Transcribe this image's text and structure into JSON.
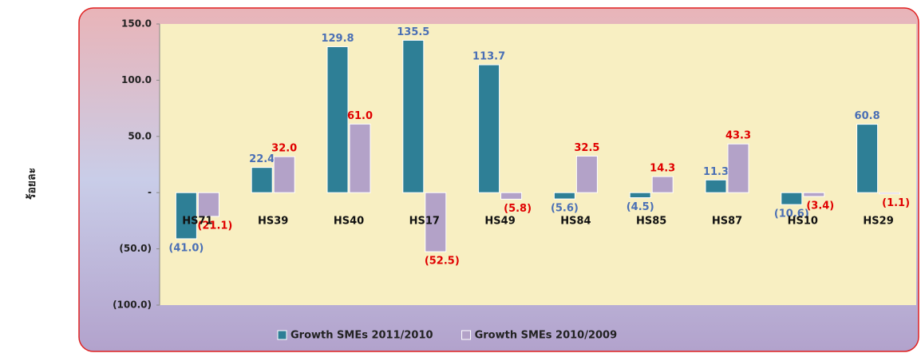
{
  "chart_data": {
    "type": "bar",
    "y_label": "ร้อยละ",
    "categories": [
      "HS71",
      "HS39",
      "HS40",
      "HS17",
      "HS49",
      "HS84",
      "HS85",
      "HS87",
      "HS10",
      "HS29"
    ],
    "series": [
      {
        "name": "Growth SMEs 2011/2010",
        "color": "#2e7f96",
        "label_color": "#4a6fb5",
        "values": [
          -41.0,
          22.4,
          129.8,
          135.5,
          113.7,
          -5.6,
          -4.5,
          11.3,
          -10.6,
          60.8
        ],
        "value_labels": [
          "(41.0)",
          "22.4",
          "129.8",
          "135.5",
          "113.7",
          "(5.6)",
          "(4.5)",
          "11.3",
          "(10.6)",
          "60.8"
        ]
      },
      {
        "name": "Growth SMEs 2010/2009",
        "color": "#b3a2c8",
        "label_color": "#e00000",
        "values": [
          -21.1,
          32.0,
          61.0,
          -52.5,
          -5.8,
          32.5,
          14.3,
          43.3,
          -3.4,
          -1.1
        ],
        "value_labels": [
          "(21.1)",
          "32.0",
          "61.0",
          "(52.5)",
          "(5.8)",
          "32.5",
          "14.3",
          "43.3",
          "(3.4)",
          "(1.1)"
        ]
      }
    ],
    "ylim": [
      -100,
      150
    ],
    "yticks": [
      {
        "value": 150,
        "label": "150.0"
      },
      {
        "value": 100,
        "label": "100.0"
      },
      {
        "value": 50,
        "label": "50.0"
      },
      {
        "value": 0,
        "label": "-"
      },
      {
        "value": -50,
        "label": "(50.0)"
      },
      {
        "value": -100,
        "label": "(100.0)"
      }
    ],
    "legend": "bottom"
  }
}
